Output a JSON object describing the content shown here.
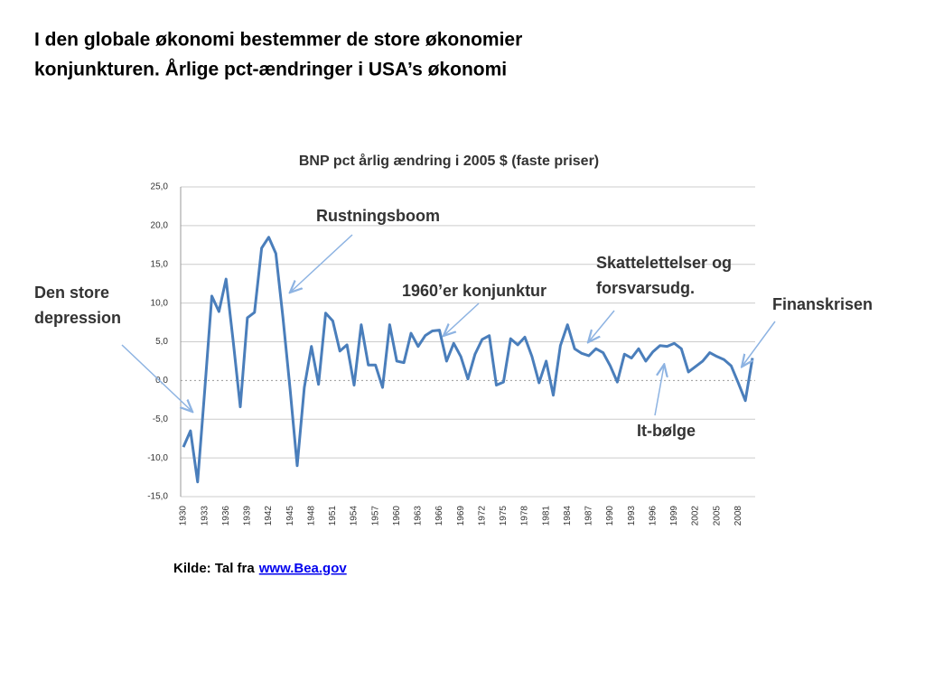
{
  "slide": {
    "title": [
      "I den globale økonomi bestemmer de store økonomier",
      "konjunkturen. Årlige pct-ændringer i USA’s økonomi"
    ],
    "source": {
      "text": "Kilde: Tal fra",
      "link": "www.Bea.gov"
    }
  },
  "chart_data": {
    "type": "line",
    "title": "BNP pct årlig ændring i 2005 $ (faste priser)",
    "categories": [
      "1930",
      null,
      null,
      "1933",
      null,
      null,
      "1936",
      null,
      null,
      "1939",
      null,
      null,
      "1942",
      null,
      null,
      "1945",
      null,
      null,
      "1948",
      null,
      null,
      "1951",
      null,
      null,
      "1954",
      null,
      null,
      "1957",
      null,
      null,
      "1960",
      null,
      null,
      "1963",
      null,
      null,
      "1966",
      null,
      null,
      "1969",
      null,
      null,
      "1972",
      null,
      null,
      "1975",
      null,
      null,
      "1978",
      null,
      null,
      "1981",
      null,
      null,
      "1984",
      null,
      null,
      "1987",
      null,
      null,
      "1990",
      null,
      null,
      "1993",
      null,
      null,
      "1996",
      null,
      null,
      "1999",
      null,
      null,
      "2002",
      null,
      null,
      "2005",
      null,
      null,
      "2008",
      null,
      null
    ],
    "series": [
      {
        "name": "BNP",
        "color": "#4a7ebb",
        "values": [
          -8.6,
          -6.5,
          -13.1,
          -1.3,
          10.9,
          8.9,
          13.1,
          5.1,
          -3.4,
          8.1,
          8.8,
          17.1,
          18.5,
          16.4,
          8.1,
          -1.1,
          -11.0,
          -0.9,
          4.4,
          -0.5,
          8.7,
          7.7,
          3.8,
          4.6,
          -0.6,
          7.2,
          2.0,
          2.0,
          -0.9,
          7.2,
          2.5,
          2.3,
          6.1,
          4.4,
          5.8,
          6.4,
          6.5,
          2.5,
          4.8,
          3.1,
          0.2,
          3.4,
          5.3,
          5.8,
          -0.6,
          -0.2,
          5.4,
          4.6,
          5.6,
          3.1,
          -0.3,
          2.5,
          -1.9,
          4.5,
          7.2,
          4.1,
          3.5,
          3.2,
          4.1,
          3.6,
          1.9,
          -0.2,
          3.4,
          2.9,
          4.1,
          2.5,
          3.7,
          4.5,
          4.4,
          4.8,
          4.1,
          1.1,
          1.8,
          2.5,
          3.6,
          3.1,
          2.7,
          1.9,
          -0.3,
          -2.6,
          2.9
        ]
      }
    ],
    "ylim": [
      -15,
      25
    ],
    "yticks": [
      {
        "value": -15,
        "label": "-15,0"
      },
      {
        "value": -10,
        "label": "-10,0"
      },
      {
        "value": -5,
        "label": "-5,0"
      },
      {
        "value": 0,
        "label": "0,0"
      },
      {
        "value": 5,
        "label": "5,0"
      },
      {
        "value": 10,
        "label": "10,0"
      },
      {
        "value": 15,
        "label": "15,0"
      },
      {
        "value": 20,
        "label": "20,0"
      },
      {
        "value": 25,
        "label": "25,0"
      }
    ],
    "grid": true,
    "annotations": [
      [
        "Rustningsboom"
      ],
      [
        "1960’er konjunktur"
      ],
      [
        "Skattelettelser og",
        "forsvarsudg."
      ],
      [
        "Finanskrisen"
      ],
      [
        "Den store",
        "depression"
      ],
      [
        "It-bølge"
      ]
    ]
  }
}
